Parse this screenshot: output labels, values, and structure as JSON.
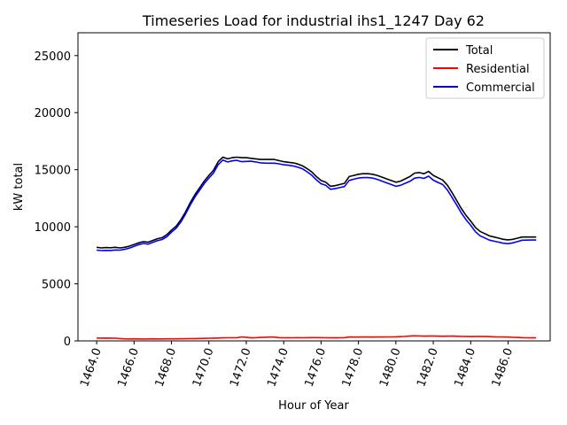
{
  "chart_data": {
    "type": "line",
    "title": "Timeseries Load for industrial ihs1_1247  Day 62",
    "xlabel": "Hour of Year",
    "ylabel": "kW total",
    "xlim": [
      1463.0,
      1488.25
    ],
    "ylim": [
      0,
      27000
    ],
    "x_ticks": [
      1464,
      1466,
      1468,
      1470,
      1472,
      1474,
      1476,
      1478,
      1480,
      1482,
      1484,
      1486
    ],
    "x_tick_labels": [
      "1464.0",
      "1466.0",
      "1468.0",
      "1470.0",
      "1472.0",
      "1474.0",
      "1476.0",
      "1478.0",
      "1480.0",
      "1482.0",
      "1484.0",
      "1486.0"
    ],
    "y_ticks": [
      0,
      5000,
      10000,
      15000,
      20000,
      25000
    ],
    "y_tick_labels": [
      "0",
      "5000",
      "10000",
      "15000",
      "20000",
      "25000"
    ],
    "legend_position": "top-right",
    "x": [
      1464.0,
      1464.25,
      1464.5,
      1464.75,
      1465.0,
      1465.25,
      1465.5,
      1465.75,
      1466.0,
      1466.25,
      1466.5,
      1466.75,
      1467.0,
      1467.25,
      1467.5,
      1467.75,
      1468.0,
      1468.25,
      1468.5,
      1468.75,
      1469.0,
      1469.25,
      1469.5,
      1469.75,
      1470.0,
      1470.25,
      1470.5,
      1470.75,
      1471.0,
      1471.25,
      1471.5,
      1471.75,
      1472.0,
      1472.25,
      1472.5,
      1472.75,
      1473.0,
      1473.25,
      1473.5,
      1473.75,
      1474.0,
      1474.25,
      1474.5,
      1474.75,
      1475.0,
      1475.25,
      1475.5,
      1475.75,
      1476.0,
      1476.25,
      1476.5,
      1476.75,
      1477.0,
      1477.25,
      1477.5,
      1477.75,
      1478.0,
      1478.25,
      1478.5,
      1478.75,
      1479.0,
      1479.25,
      1479.5,
      1479.75,
      1480.0,
      1480.25,
      1480.5,
      1480.75,
      1481.0,
      1481.25,
      1481.5,
      1481.75,
      1482.0,
      1482.25,
      1482.5,
      1482.75,
      1483.0,
      1483.25,
      1483.5,
      1483.75,
      1484.0,
      1484.25,
      1484.5,
      1484.75,
      1485.0,
      1485.25,
      1485.5,
      1485.75,
      1486.0,
      1486.25,
      1486.5,
      1486.75,
      1487.0,
      1487.25,
      1487.5
    ],
    "series": [
      {
        "name": "Total",
        "color": "#000000",
        "values": [
          8200,
          8150,
          8180,
          8160,
          8200,
          8150,
          8200,
          8300,
          8450,
          8600,
          8700,
          8650,
          8800,
          8950,
          9050,
          9300,
          9700,
          10050,
          10600,
          11300,
          12100,
          12800,
          13400,
          14000,
          14500,
          14950,
          15700,
          16100,
          15950,
          16050,
          16100,
          16050,
          16050,
          16000,
          15950,
          15900,
          15900,
          15900,
          15900,
          15800,
          15700,
          15650,
          15600,
          15500,
          15350,
          15100,
          14800,
          14400,
          14050,
          13900,
          13550,
          13600,
          13700,
          13800,
          14400,
          14500,
          14600,
          14650,
          14650,
          14600,
          14500,
          14350,
          14200,
          14050,
          13900,
          14000,
          14200,
          14400,
          14700,
          14750,
          14650,
          14850,
          14500,
          14300,
          14100,
          13650,
          13000,
          12300,
          11600,
          11000,
          10500,
          9950,
          9600,
          9400,
          9200,
          9100,
          9000,
          8900,
          8850,
          8900,
          9000,
          9100,
          9100,
          9100,
          9100
        ]
      },
      {
        "name": "Residential",
        "color": "#ff0000",
        "values": [
          250,
          240,
          250,
          240,
          230,
          200,
          180,
          170,
          175,
          170,
          165,
          170,
          175,
          170,
          170,
          175,
          180,
          180,
          185,
          190,
          200,
          205,
          210,
          220,
          230,
          240,
          250,
          260,
          270,
          275,
          280,
          350,
          320,
          260,
          270,
          300,
          320,
          330,
          330,
          280,
          270,
          260,
          270,
          280,
          270,
          280,
          285,
          290,
          280,
          270,
          265,
          260,
          270,
          280,
          340,
          330,
          330,
          340,
          340,
          335,
          340,
          345,
          350,
          350,
          355,
          370,
          390,
          420,
          440,
          430,
          410,
          420,
          420,
          410,
          400,
          410,
          420,
          400,
          390,
          380,
          370,
          380,
          390,
          380,
          370,
          360,
          350,
          340,
          330,
          310,
          300,
          280,
          270,
          265,
          260
        ]
      },
      {
        "name": "Commercial",
        "color": "#0000ff",
        "values": [
          7950,
          7910,
          7930,
          7920,
          7970,
          7950,
          8020,
          8130,
          8275,
          8430,
          8535,
          8480,
          8625,
          8780,
          8880,
          9125,
          9520,
          9870,
          10415,
          11110,
          11900,
          12595,
          13190,
          13780,
          14270,
          14710,
          15450,
          15840,
          15680,
          15775,
          15820,
          15700,
          15730,
          15740,
          15680,
          15600,
          15580,
          15570,
          15570,
          15520,
          15430,
          15390,
          15330,
          15220,
          15080,
          14820,
          14515,
          14110,
          13770,
          13630,
          13285,
          13340,
          13430,
          13520,
          14060,
          14170,
          14270,
          14310,
          14310,
          14265,
          14160,
          14005,
          13850,
          13700,
          13545,
          13630,
          13810,
          13980,
          14260,
          14320,
          14240,
          14430,
          14080,
          13890,
          13700,
          13240,
          12580,
          11900,
          11210,
          10620,
          10130,
          9570,
          9210,
          9020,
          8830,
          8740,
          8650,
          8560,
          8520,
          8590,
          8700,
          8820,
          8830,
          8835,
          8840
        ]
      }
    ]
  }
}
